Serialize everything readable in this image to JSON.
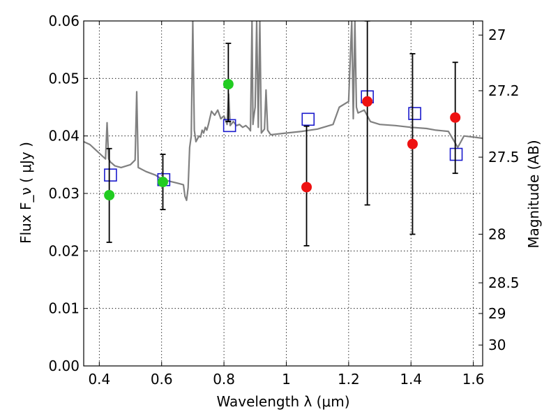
{
  "chart_data": {
    "type": "scatter",
    "xlabel": "Wavelength  λ (μm)",
    "ylabel": "Flux  F_ν  ( μJy )",
    "y2label": "Magnitude (AB)",
    "xlim": [
      0.35,
      1.63
    ],
    "ylim": [
      0.0,
      0.06
    ],
    "grid": true,
    "x_ticks": [
      0.4,
      0.6,
      0.8,
      1.0,
      1.2,
      1.4,
      1.6
    ],
    "x_tick_labels": [
      "0.4",
      "0.6",
      "0.8",
      "1",
      "1.2",
      "1.4",
      "1.6"
    ],
    "y_ticks": [
      0.0,
      0.01,
      0.02,
      0.03,
      0.04,
      0.05,
      0.06
    ],
    "y_tick_labels": [
      "0.00",
      "0.01",
      "0.02",
      "0.03",
      "0.04",
      "0.05",
      "0.06"
    ],
    "y2_ticks": [
      27,
      27.2,
      27.5,
      28,
      28.5,
      29,
      30
    ],
    "y2_tick_labels": [
      "27",
      "27.2",
      "27.5",
      "28",
      "28.5",
      "29",
      "30"
    ],
    "series": [
      {
        "kind": "spectrum-line",
        "color": "#808080",
        "x": [
          0.35,
          0.37,
          0.39,
          0.41,
          0.42,
          0.425,
          0.43,
          0.435,
          0.45,
          0.47,
          0.5,
          0.515,
          0.52,
          0.525,
          0.55,
          0.58,
          0.6,
          0.62,
          0.65,
          0.67,
          0.675,
          0.68,
          0.685,
          0.69,
          0.695,
          0.7,
          0.705,
          0.71,
          0.715,
          0.72,
          0.725,
          0.73,
          0.735,
          0.74,
          0.745,
          0.75,
          0.76,
          0.77,
          0.78,
          0.79,
          0.8,
          0.81,
          0.815,
          0.82,
          0.83,
          0.84,
          0.85,
          0.86,
          0.87,
          0.88,
          0.885,
          0.89,
          0.893,
          0.895,
          0.9,
          0.905,
          0.91,
          0.915,
          0.92,
          0.93,
          0.935,
          0.94,
          0.95,
          1.0,
          1.05,
          1.1,
          1.15,
          1.17,
          1.2,
          1.21,
          1.215,
          1.22,
          1.225,
          1.23,
          1.25,
          1.27,
          1.3,
          1.35,
          1.4,
          1.45,
          1.48,
          1.52,
          1.55,
          1.57,
          1.6,
          1.63
        ],
        "y": [
          0.039,
          0.0385,
          0.0375,
          0.0365,
          0.036,
          0.0423,
          0.036,
          0.0355,
          0.0348,
          0.0345,
          0.035,
          0.0358,
          0.0477,
          0.0345,
          0.0338,
          0.0332,
          0.0325,
          0.0322,
          0.0318,
          0.0315,
          0.0295,
          0.0288,
          0.031,
          0.038,
          0.04,
          0.06,
          0.041,
          0.039,
          0.0395,
          0.04,
          0.0398,
          0.041,
          0.0405,
          0.0415,
          0.041,
          0.042,
          0.0443,
          0.0436,
          0.0445,
          0.043,
          0.0435,
          0.042,
          0.0473,
          0.0418,
          0.0425,
          0.0418,
          0.042,
          0.0415,
          0.0418,
          0.0413,
          0.0409,
          0.06,
          0.042,
          0.043,
          0.045,
          0.06,
          0.0415,
          0.06,
          0.0405,
          0.0412,
          0.048,
          0.041,
          0.0402,
          0.0405,
          0.0408,
          0.0412,
          0.042,
          0.045,
          0.046,
          0.06,
          0.043,
          0.06,
          0.045,
          0.044,
          0.0445,
          0.0425,
          0.042,
          0.0418,
          0.0415,
          0.0413,
          0.041,
          0.0408,
          0.038,
          0.04,
          0.0398,
          0.0396
        ]
      },
      {
        "kind": "model-squares",
        "color": "#1a1acc",
        "x": [
          0.436,
          0.607,
          0.818,
          1.07,
          1.26,
          1.412,
          1.545
        ],
        "y": [
          0.0332,
          0.0324,
          0.0418,
          0.0429,
          0.0468,
          0.0439,
          0.0368
        ]
      },
      {
        "kind": "hst-points",
        "color": "#22cc22",
        "x": [
          0.432,
          0.604,
          0.814
        ],
        "y": [
          0.0297,
          0.032,
          0.049
        ],
        "yerr_low": [
          0.0215,
          0.0272,
          0.0425
        ],
        "yerr_high": [
          0.0378,
          0.0368,
          0.0561
        ]
      },
      {
        "kind": "wfc3-points",
        "color": "#ee1111",
        "x": [
          1.065,
          1.26,
          1.405,
          1.542
        ],
        "y": [
          0.0311,
          0.046,
          0.0386,
          0.0432
        ],
        "yerr_low": [
          0.0209,
          0.028,
          0.0229,
          0.0335
        ],
        "yerr_high": [
          0.0417,
          0.06,
          0.0543,
          0.0528
        ]
      }
    ]
  }
}
